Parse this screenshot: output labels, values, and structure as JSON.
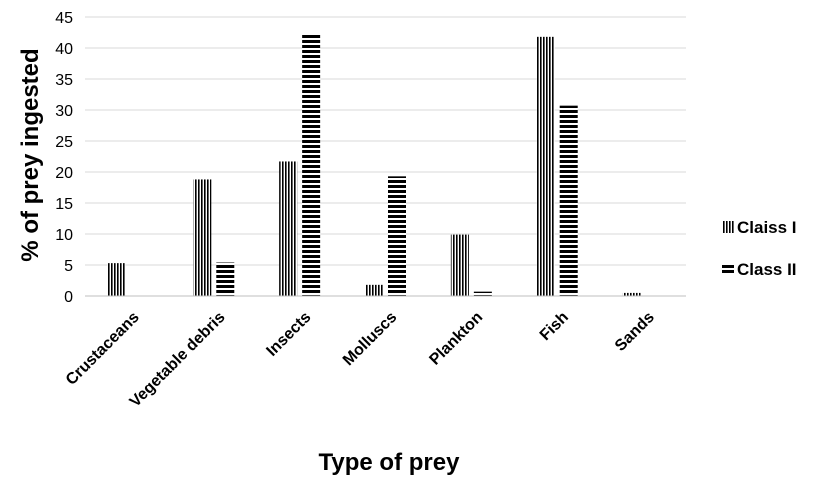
{
  "chart_data": {
    "type": "bar",
    "categories": [
      "Crustaceans",
      "Vegetable debris",
      "Insects",
      "Molluscs",
      "Plankton",
      "Fish",
      "Sands"
    ],
    "series": [
      {
        "name": "Claiss I",
        "values": [
          5.3,
          18.8,
          21.7,
          1.8,
          9.9,
          41.8,
          0.5
        ],
        "pattern": "vertical-stripes"
      },
      {
        "name": "Class II",
        "values": [
          0,
          5.4,
          42.3,
          19.3,
          0.7,
          30.7,
          0
        ],
        "pattern": "horizontal-stripes"
      }
    ],
    "xlabel": "Type of prey",
    "ylabel": "% of prey ingested",
    "ylim": [
      0,
      45
    ],
    "yticks": [
      0,
      5,
      10,
      15,
      20,
      25,
      30,
      35,
      40,
      45
    ],
    "grid": true,
    "legend": "right"
  }
}
